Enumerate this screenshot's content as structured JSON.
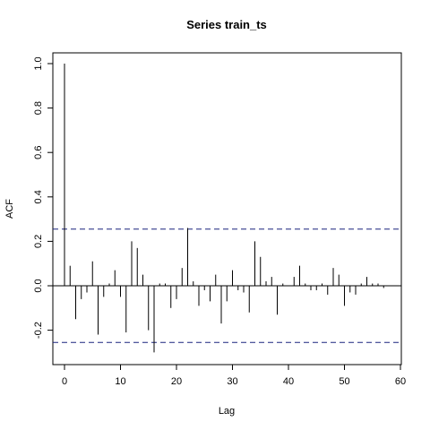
{
  "chart_data": {
    "type": "bar",
    "title": "Series  train_ts",
    "xlabel": "Lag",
    "ylabel": "ACF",
    "xlim": [
      -2,
      60
    ],
    "ylim": [
      -0.3,
      1.0
    ],
    "xticks": [
      0,
      10,
      20,
      30,
      40,
      50,
      60
    ],
    "xtick_labels": [
      "0",
      "10",
      "20",
      "30",
      "40",
      "50",
      "60"
    ],
    "yticks": [
      -0.2,
      0.0,
      0.2,
      0.4,
      0.6,
      0.8,
      1.0
    ],
    "ytick_labels": [
      "-0.2",
      "0.0",
      "0.2",
      "0.4",
      "0.6",
      "0.8",
      "1.0"
    ],
    "grid": false,
    "legend": "none",
    "confidence_bounds": [
      0.255,
      -0.255
    ],
    "zero_line": true,
    "colors": {
      "bars": "#000000",
      "bounds": "#1a237e",
      "zero_line": "#000000"
    },
    "lags": [
      0,
      1,
      2,
      3,
      4,
      5,
      6,
      7,
      8,
      9,
      10,
      11,
      12,
      13,
      14,
      15,
      16,
      17,
      18,
      19,
      20,
      21,
      22,
      23,
      24,
      25,
      26,
      27,
      28,
      29,
      30,
      31,
      32,
      33,
      34,
      35,
      36,
      37,
      38,
      39,
      40,
      41,
      42,
      43,
      44,
      45,
      46,
      47,
      48,
      49,
      50,
      51,
      52,
      53,
      54,
      55,
      56,
      57
    ],
    "values": [
      1.0,
      0.09,
      -0.15,
      -0.06,
      -0.03,
      0.11,
      -0.22,
      -0.05,
      0.01,
      0.07,
      -0.05,
      -0.21,
      0.2,
      0.17,
      0.05,
      -0.2,
      -0.3,
      0.01,
      0.01,
      -0.1,
      -0.06,
      0.08,
      0.26,
      0.02,
      -0.09,
      -0.02,
      -0.07,
      0.05,
      -0.17,
      -0.07,
      0.07,
      -0.02,
      -0.03,
      -0.12,
      0.2,
      0.13,
      0.02,
      0.04,
      -0.13,
      0.01,
      0.0,
      0.04,
      0.09,
      0.01,
      -0.02,
      -0.02,
      0.01,
      -0.04,
      0.08,
      0.05,
      -0.09,
      -0.03,
      -0.04,
      0.01,
      0.04,
      0.01,
      0.01,
      -0.01
    ]
  }
}
